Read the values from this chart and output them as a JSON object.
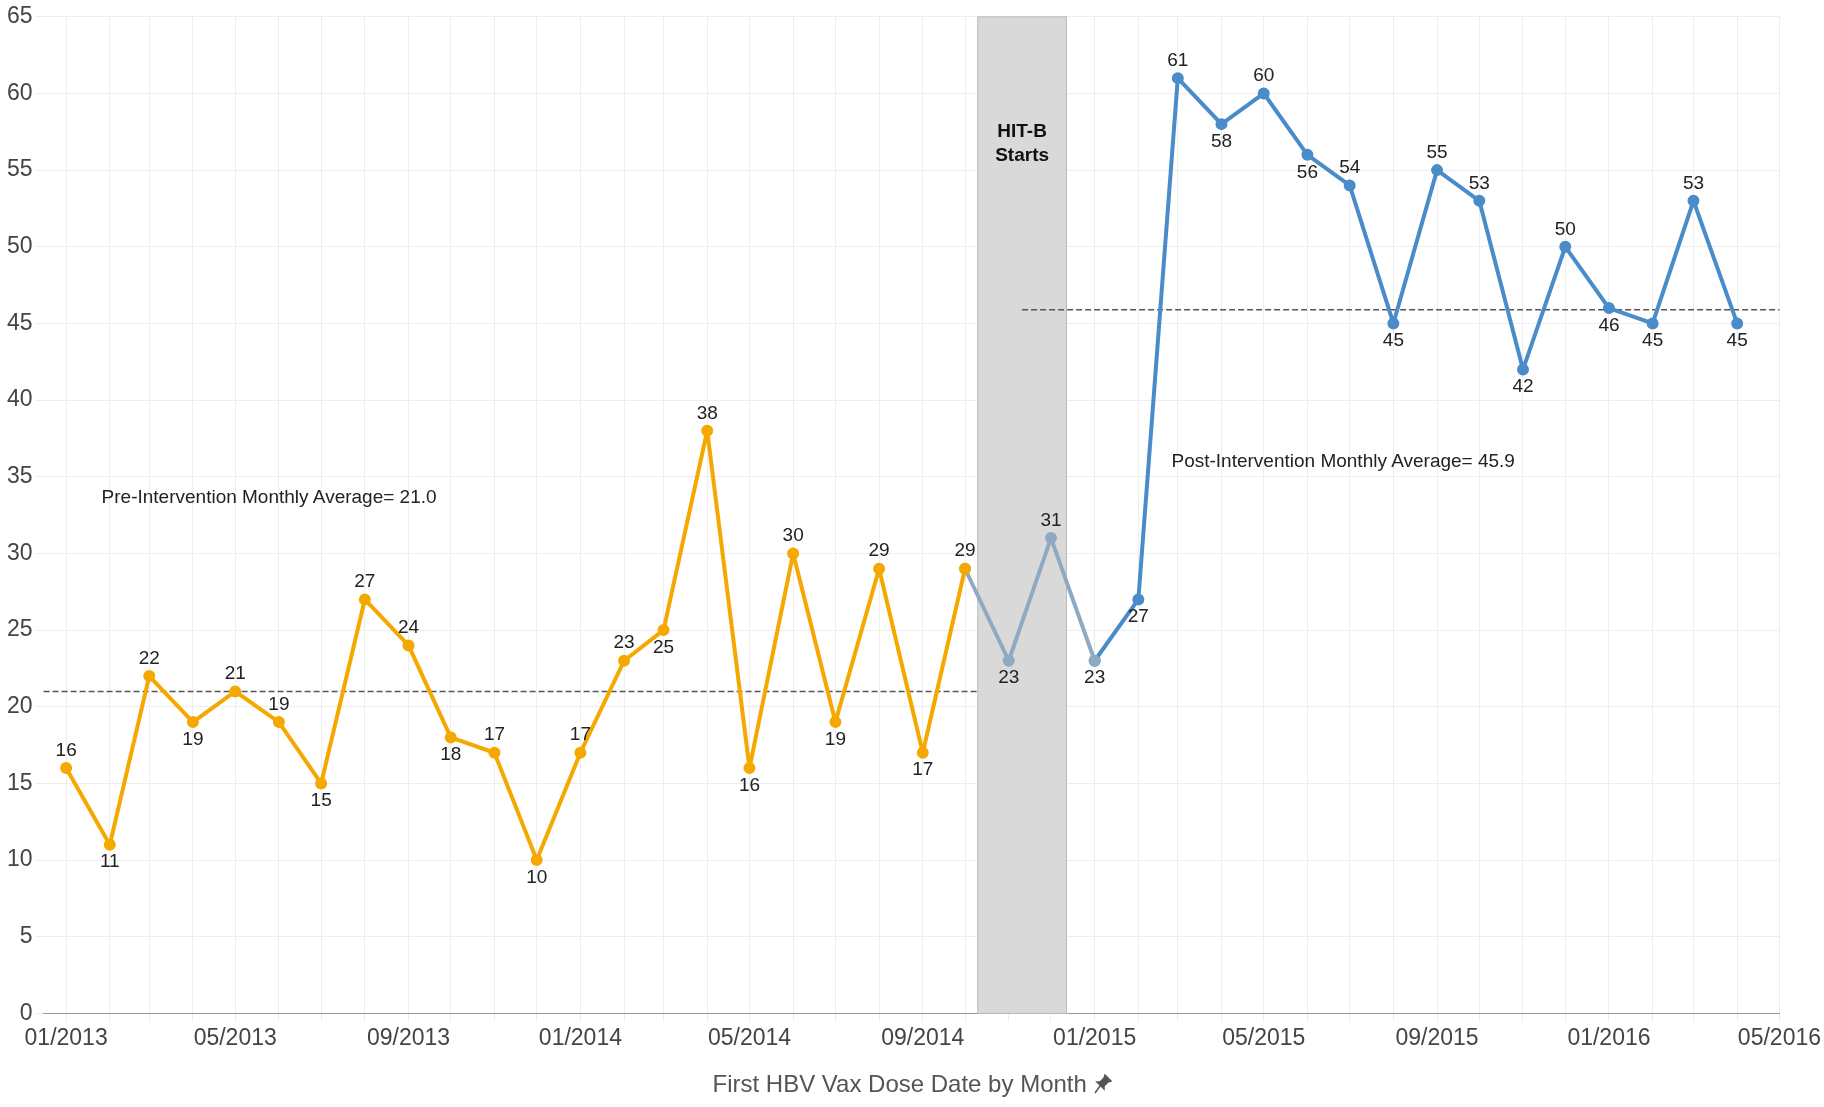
{
  "chart_data": {
    "type": "line",
    "xlabel": "First HBV Vax Dose Date by Month",
    "xlim": [
      "2012-12-16",
      "2016-05-01"
    ],
    "ylim": [
      0,
      65
    ],
    "yticks": [
      0,
      5,
      10,
      15,
      20,
      25,
      30,
      35,
      40,
      45,
      50,
      55,
      60,
      65
    ],
    "xticks": [
      {
        "value": "2013-01",
        "label": "01/2013"
      },
      {
        "value": "2013-02",
        "label": null
      },
      {
        "value": "2013-03",
        "label": null
      },
      {
        "value": "2013-04",
        "label": null
      },
      {
        "value": "2013-05",
        "label": "05/2013"
      },
      {
        "value": "2013-06",
        "label": null
      },
      {
        "value": "2013-07",
        "label": null
      },
      {
        "value": "2013-08",
        "label": null
      },
      {
        "value": "2013-09",
        "label": "09/2013"
      },
      {
        "value": "2013-10",
        "label": null
      },
      {
        "value": "2013-11",
        "label": null
      },
      {
        "value": "2013-12",
        "label": null
      },
      {
        "value": "2014-01",
        "label": "01/2014"
      },
      {
        "value": "2014-02",
        "label": null
      },
      {
        "value": "2014-03",
        "label": null
      },
      {
        "value": "2014-04",
        "label": null
      },
      {
        "value": "2014-05",
        "label": "05/2014"
      },
      {
        "value": "2014-06",
        "label": null
      },
      {
        "value": "2014-07",
        "label": null
      },
      {
        "value": "2014-08",
        "label": null
      },
      {
        "value": "2014-09",
        "label": "09/2014"
      },
      {
        "value": "2014-10",
        "label": null
      },
      {
        "value": "2014-11",
        "label": null
      },
      {
        "value": "2014-12",
        "label": null
      },
      {
        "value": "2015-01",
        "label": "01/2015"
      },
      {
        "value": "2015-02",
        "label": null
      },
      {
        "value": "2015-03",
        "label": null
      },
      {
        "value": "2015-04",
        "label": null
      },
      {
        "value": "2015-05",
        "label": "05/2015"
      },
      {
        "value": "2015-06",
        "label": null
      },
      {
        "value": "2015-07",
        "label": null
      },
      {
        "value": "2015-08",
        "label": null
      },
      {
        "value": "2015-09",
        "label": "09/2015"
      },
      {
        "value": "2015-10",
        "label": null
      },
      {
        "value": "2015-11",
        "label": null
      },
      {
        "value": "2015-12",
        "label": null
      },
      {
        "value": "2016-01",
        "label": "01/2016"
      },
      {
        "value": "2016-02",
        "label": null
      },
      {
        "value": "2016-03",
        "label": null
      },
      {
        "value": "2016-04",
        "label": null
      },
      {
        "value": "2016-05",
        "label": "05/2016"
      }
    ],
    "grid": true,
    "legend": false,
    "marker": "circle",
    "series": [
      {
        "color": "#f5a800",
        "x": [
          "2013-01",
          "2013-02",
          "2013-03",
          "2013-04",
          "2013-05",
          "2013-06",
          "2013-07",
          "2013-08",
          "2013-09",
          "2013-10",
          "2013-11",
          "2013-12",
          "2014-01",
          "2014-02",
          "2014-03",
          "2014-04",
          "2014-05",
          "2014-06",
          "2014-07",
          "2014-08",
          "2014-09",
          "2014-10"
        ],
        "values": [
          16,
          11,
          22,
          19,
          21,
          19,
          15,
          27,
          24,
          18,
          17,
          10,
          17,
          23,
          25,
          38,
          16,
          30,
          19,
          29,
          17,
          29
        ],
        "value_labels": [
          "16",
          "11",
          "22",
          "19",
          "21",
          "19",
          "15",
          "27",
          "24",
          "18",
          "17",
          "10",
          "17",
          "23",
          "25",
          "38",
          "16",
          "30",
          "19",
          "29",
          "17",
          "29"
        ]
      },
      {
        "color": "#8fa9c2",
        "x": [
          "2014-10",
          "2014-11",
          "2014-12",
          "2015-01"
        ],
        "values": [
          29,
          23,
          31,
          23
        ],
        "value_labels": [
          null,
          "23",
          "31",
          null
        ]
      },
      {
        "color": "#4a8bc9",
        "x": [
          "2015-01",
          "2015-02",
          "2015-03",
          "2015-04",
          "2015-05",
          "2015-06",
          "2015-07",
          "2015-08",
          "2015-09",
          "2015-10",
          "2015-11",
          "2015-12",
          "2016-01",
          "2016-02",
          "2016-03",
          "2016-04"
        ],
        "values": [
          23,
          27,
          61,
          58,
          60,
          56,
          54,
          45,
          55,
          53,
          42,
          50,
          46,
          45,
          53,
          45
        ],
        "value_labels": [
          "23",
          "27",
          "61",
          "58",
          "60",
          "56",
          "54",
          "45",
          "55",
          "53",
          "42",
          "50",
          "46",
          "45",
          "53",
          "45"
        ]
      }
    ],
    "bands": [
      {
        "axis": "x",
        "from": "2014-10-10",
        "to": "2014-12-12",
        "label": "HIT-B Starts",
        "color": "#d9d9d9"
      }
    ],
    "ref_lines": [
      {
        "axis": "y",
        "value": 21.0,
        "color": "#555555",
        "line_style": "dashed"
      },
      {
        "axis": "y",
        "value": 45.9,
        "color": "#555555",
        "line_style": "dashed"
      }
    ],
    "annotations": [
      "Pre-Intervention Monthly Average= 21.0",
      "Post-Intervention Monthly Average= 45.9"
    ]
  }
}
